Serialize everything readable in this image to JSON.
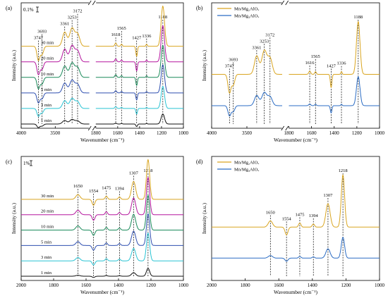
{
  "chart_data": [
    {
      "type": "line",
      "panel_label": "(a)",
      "scale_bar": "0.1%",
      "xlabel": "Wavenumber (cm⁻¹)",
      "ylabel": "Intensity (a.u.)",
      "xlim": [
        4000,
        1000
      ],
      "axis_break": [
        3000,
        1800
      ],
      "x_ticks": [
        4000,
        3500,
        1800,
        1600,
        1400,
        1200,
        1000
      ],
      "peaks": [
        {
          "label": "3747",
          "x": 3747
        },
        {
          "label": "3693",
          "x": 3693
        },
        {
          "label": "3361",
          "x": 3361
        },
        {
          "label": "3253",
          "x": 3253
        },
        {
          "label": "3172",
          "x": 3172
        },
        {
          "label": "1618",
          "x": 1618
        },
        {
          "label": "1565",
          "x": 1565
        },
        {
          "label": "1427",
          "x": 1427
        },
        {
          "label": "1336",
          "x": 1336
        },
        {
          "label": "1188",
          "x": 1188
        }
      ],
      "series": [
        {
          "name": "1 min",
          "color": "#111111",
          "offset": 0,
          "scale": 0.25
        },
        {
          "name": "3 min",
          "color": "#2ac4d4",
          "offset": 1,
          "scale": 0.55
        },
        {
          "name": "5 min",
          "color": "#2e4fb0",
          "offset": 2,
          "scale": 0.7
        },
        {
          "name": "10 min",
          "color": "#1a8a5a",
          "offset": 3,
          "scale": 0.8
        },
        {
          "name": "20 min",
          "color": "#b5179e",
          "offset": 4,
          "scale": 0.9
        },
        {
          "name": "30 min",
          "color": "#d9a520",
          "offset": 5,
          "scale": 1.0
        }
      ]
    },
    {
      "type": "line",
      "panel_label": "(b)",
      "xlabel": "Wavenumber (cm⁻¹)",
      "ylabel": "Intensity (a.u.)",
      "xlim": [
        4000,
        1000
      ],
      "axis_break": [
        3000,
        1800
      ],
      "x_ticks": [
        4000,
        3500,
        1800,
        1600,
        1400,
        1200,
        1000
      ],
      "peaks": [
        {
          "label": "3747",
          "x": 3747
        },
        {
          "label": "3693",
          "x": 3693
        },
        {
          "label": "3361",
          "x": 3361
        },
        {
          "label": "3253",
          "x": 3253
        },
        {
          "label": "3172",
          "x": 3172
        },
        {
          "label": "1616",
          "x": 1616
        },
        {
          "label": "1565",
          "x": 1565
        },
        {
          "label": "1427",
          "x": 1427
        },
        {
          "label": "1336",
          "x": 1336
        },
        {
          "label": "1188",
          "x": 1188
        }
      ],
      "series": [
        {
          "name": "Mn/Mg₂AlOₓ",
          "color": "#d9a520",
          "offset": 1,
          "scale": 1.0
        },
        {
          "name": "Mn/Mg₃AlOₓ",
          "color": "#2b6cc4",
          "offset": 0,
          "scale": 0.55
        }
      ]
    },
    {
      "type": "line",
      "panel_label": "(c)",
      "scale_bar": "1%",
      "xlabel": "Wavenumber (cm⁻¹)",
      "ylabel": "Intensity (a.u.)",
      "xlim": [
        2000,
        1000
      ],
      "x_ticks": [
        2000,
        1800,
        1600,
        1400,
        1200,
        1000
      ],
      "peaks": [
        {
          "label": "1650",
          "x": 1650
        },
        {
          "label": "1554",
          "x": 1554
        },
        {
          "label": "1475",
          "x": 1475
        },
        {
          "label": "1394",
          "x": 1394
        },
        {
          "label": "1307",
          "x": 1307
        },
        {
          "label": "1218",
          "x": 1218
        }
      ],
      "series": [
        {
          "name": "1 min",
          "color": "#111111",
          "offset": 0,
          "scale": 0.2
        },
        {
          "name": "3 min",
          "color": "#2ac4d4",
          "offset": 1,
          "scale": 0.7
        },
        {
          "name": "5 min",
          "color": "#2e4fb0",
          "offset": 2,
          "scale": 0.8
        },
        {
          "name": "10 min",
          "color": "#1a8a5a",
          "offset": 3,
          "scale": 0.88
        },
        {
          "name": "20 min",
          "color": "#b5179e",
          "offset": 4,
          "scale": 0.94
        },
        {
          "name": "30 min",
          "color": "#d9a520",
          "offset": 5,
          "scale": 1.0
        }
      ]
    },
    {
      "type": "line",
      "panel_label": "(d)",
      "xlabel": "Wavenumber (cm⁻¹)",
      "ylabel": "Intensity (a.u.)",
      "xlim": [
        2000,
        1000
      ],
      "x_ticks": [
        2000,
        1800,
        1600,
        1400,
        1200,
        1000
      ],
      "peaks": [
        {
          "label": "1650",
          "x": 1650
        },
        {
          "label": "1554",
          "x": 1554
        },
        {
          "label": "1475",
          "x": 1475
        },
        {
          "label": "1394",
          "x": 1394
        },
        {
          "label": "1307",
          "x": 1307
        },
        {
          "label": "1218",
          "x": 1218
        }
      ],
      "series": [
        {
          "name": "Mn/Mg₂AlOₓ",
          "color": "#d9a520",
          "offset": 1,
          "scale": 1.0
        },
        {
          "name": "Mn/Mg₃AlOₓ",
          "color": "#2b6cc4",
          "offset": 0,
          "scale": 0.4
        }
      ]
    }
  ]
}
